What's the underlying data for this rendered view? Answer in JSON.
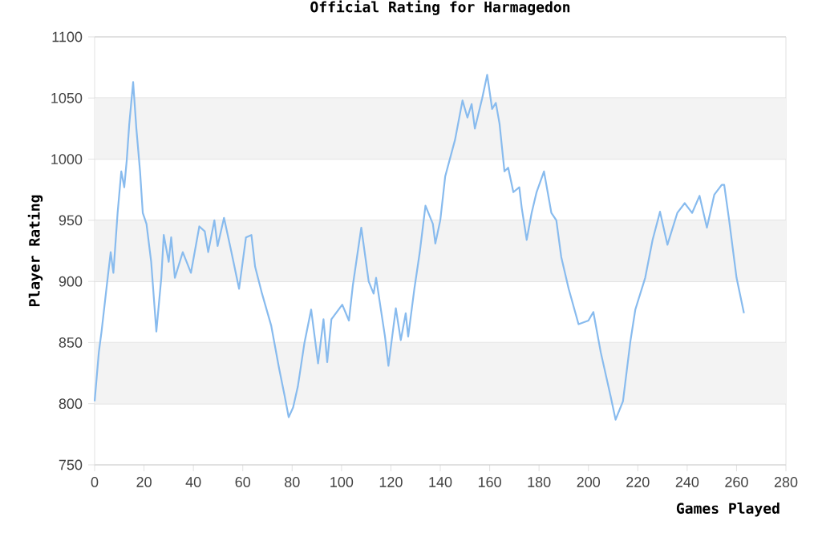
{
  "chart_data": {
    "type": "line",
    "title": "Official Rating for Harmagedon",
    "xlabel": "Games Played",
    "ylabel": "Player Rating",
    "xlim": [
      0,
      280
    ],
    "xticks": [
      0,
      20,
      40,
      60,
      80,
      100,
      120,
      140,
      160,
      180,
      200,
      220,
      240,
      260,
      280
    ],
    "ylim": [
      750,
      1100
    ],
    "yticks": [
      750,
      800,
      850,
      900,
      950,
      1000,
      1050,
      1100
    ],
    "grid": "y",
    "bands": [
      {
        "axis": "y",
        "from": 800,
        "to": 850,
        "color": "#f3f3f3"
      },
      {
        "axis": "y",
        "from": 900,
        "to": 950,
        "color": "#f3f3f3"
      },
      {
        "axis": "y",
        "from": 1000,
        "to": 1050,
        "color": "#f3f3f3"
      }
    ],
    "series": [
      {
        "color": "#88bbee",
        "x": [
          0,
          1.7,
          2.8,
          5,
          6.5,
          7.6,
          9.3,
          10.8,
          12,
          13,
          14,
          15.6,
          16.9,
          18.4,
          19.5,
          21,
          22.9,
          25,
          27,
          28,
          30,
          31,
          32.5,
          35.7,
          39,
          42.4,
          44.6,
          46,
          48.5,
          49.8,
          52.4,
          55.4,
          58.5,
          61.3,
          63.5,
          65,
          67.8,
          71.5,
          74.7,
          76.9,
          78.6,
          80.4,
          82.3,
          85,
          87.7,
          90.5,
          92.7,
          94.2,
          95.9,
          100.3,
          103,
          104.6,
          108,
          111,
          113,
          114,
          117.6,
          119,
          122,
          124,
          126,
          127,
          129.5,
          131.7,
          134,
          137,
          138,
          140,
          142,
          146,
          149,
          151,
          152.7,
          154,
          157,
          159,
          161,
          162.5,
          164,
          166,
          167.5,
          169.6,
          172,
          173,
          175,
          177,
          179,
          182,
          185,
          187,
          189,
          192,
          196,
          200,
          202,
          205,
          209,
          211,
          214,
          217,
          219,
          223,
          226,
          229,
          232,
          236,
          239,
          242,
          245,
          248,
          251,
          254,
          255,
          257,
          260,
          263
        ],
        "values": [
          802,
          842,
          859,
          898,
          924,
          907,
          956,
          990,
          977,
          999,
          1028,
          1063,
          1025,
          990,
          956,
          947,
          916,
          859,
          903,
          938,
          916,
          936,
          903,
          924,
          907,
          945,
          941,
          924,
          950,
          929,
          952,
          924,
          894,
          936,
          938,
          912,
          890,
          864,
          829,
          807,
          789,
          797,
          814,
          850,
          877,
          833,
          869,
          834,
          869,
          881,
          868,
          897,
          944,
          900,
          890,
          903,
          855,
          831,
          878,
          852,
          874,
          855,
          894,
          924,
          962,
          947,
          931,
          950,
          986,
          1016,
          1048,
          1034,
          1045,
          1025,
          1050,
          1069,
          1041,
          1046,
          1029,
          990,
          993,
          973,
          977,
          960,
          934,
          956,
          973,
          990,
          956,
          950,
          920,
          894,
          865,
          868,
          875,
          842,
          806,
          787,
          802,
          851,
          877,
          903,
          934,
          957,
          930,
          956,
          964,
          956,
          970,
          944,
          971,
          979,
          979,
          950,
          903,
          874
        ]
      }
    ]
  }
}
